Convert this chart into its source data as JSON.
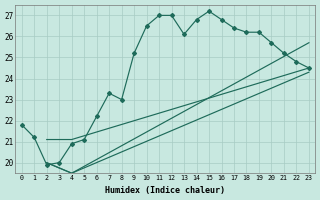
{
  "xlabel": "Humidex (Indice chaleur)",
  "background_color": "#c8e8e0",
  "grid_color": "#a8ccc4",
  "line_color": "#1e6b5a",
  "xlim": [
    -0.5,
    23.5
  ],
  "ylim": [
    19.5,
    27.5
  ],
  "xticks": [
    0,
    1,
    2,
    3,
    4,
    5,
    6,
    7,
    8,
    9,
    10,
    11,
    12,
    13,
    14,
    15,
    16,
    17,
    18,
    19,
    20,
    21,
    22,
    23
  ],
  "yticks": [
    20,
    21,
    22,
    23,
    24,
    25,
    26,
    27
  ],
  "main_x": [
    0,
    1,
    2,
    3,
    4,
    5,
    6,
    7,
    8,
    9,
    10,
    11,
    12,
    13,
    14,
    15,
    16,
    17,
    18,
    19,
    20,
    21,
    22,
    23
  ],
  "main_y": [
    21.8,
    21.2,
    19.9,
    20.0,
    20.9,
    21.1,
    22.2,
    23.3,
    23.0,
    25.2,
    26.5,
    27.0,
    27.0,
    26.1,
    26.8,
    27.2,
    26.8,
    26.4,
    26.2,
    26.2,
    25.7,
    25.2,
    24.8,
    24.5
  ],
  "line2_x": [
    2,
    4,
    23
  ],
  "line2_y": [
    20.0,
    19.5,
    25.7
  ],
  "line3_x": [
    2,
    4,
    23
  ],
  "line3_y": [
    20.0,
    19.5,
    24.3
  ],
  "line4_x": [
    2,
    4,
    23
  ],
  "line4_y": [
    21.1,
    21.1,
    24.5
  ]
}
